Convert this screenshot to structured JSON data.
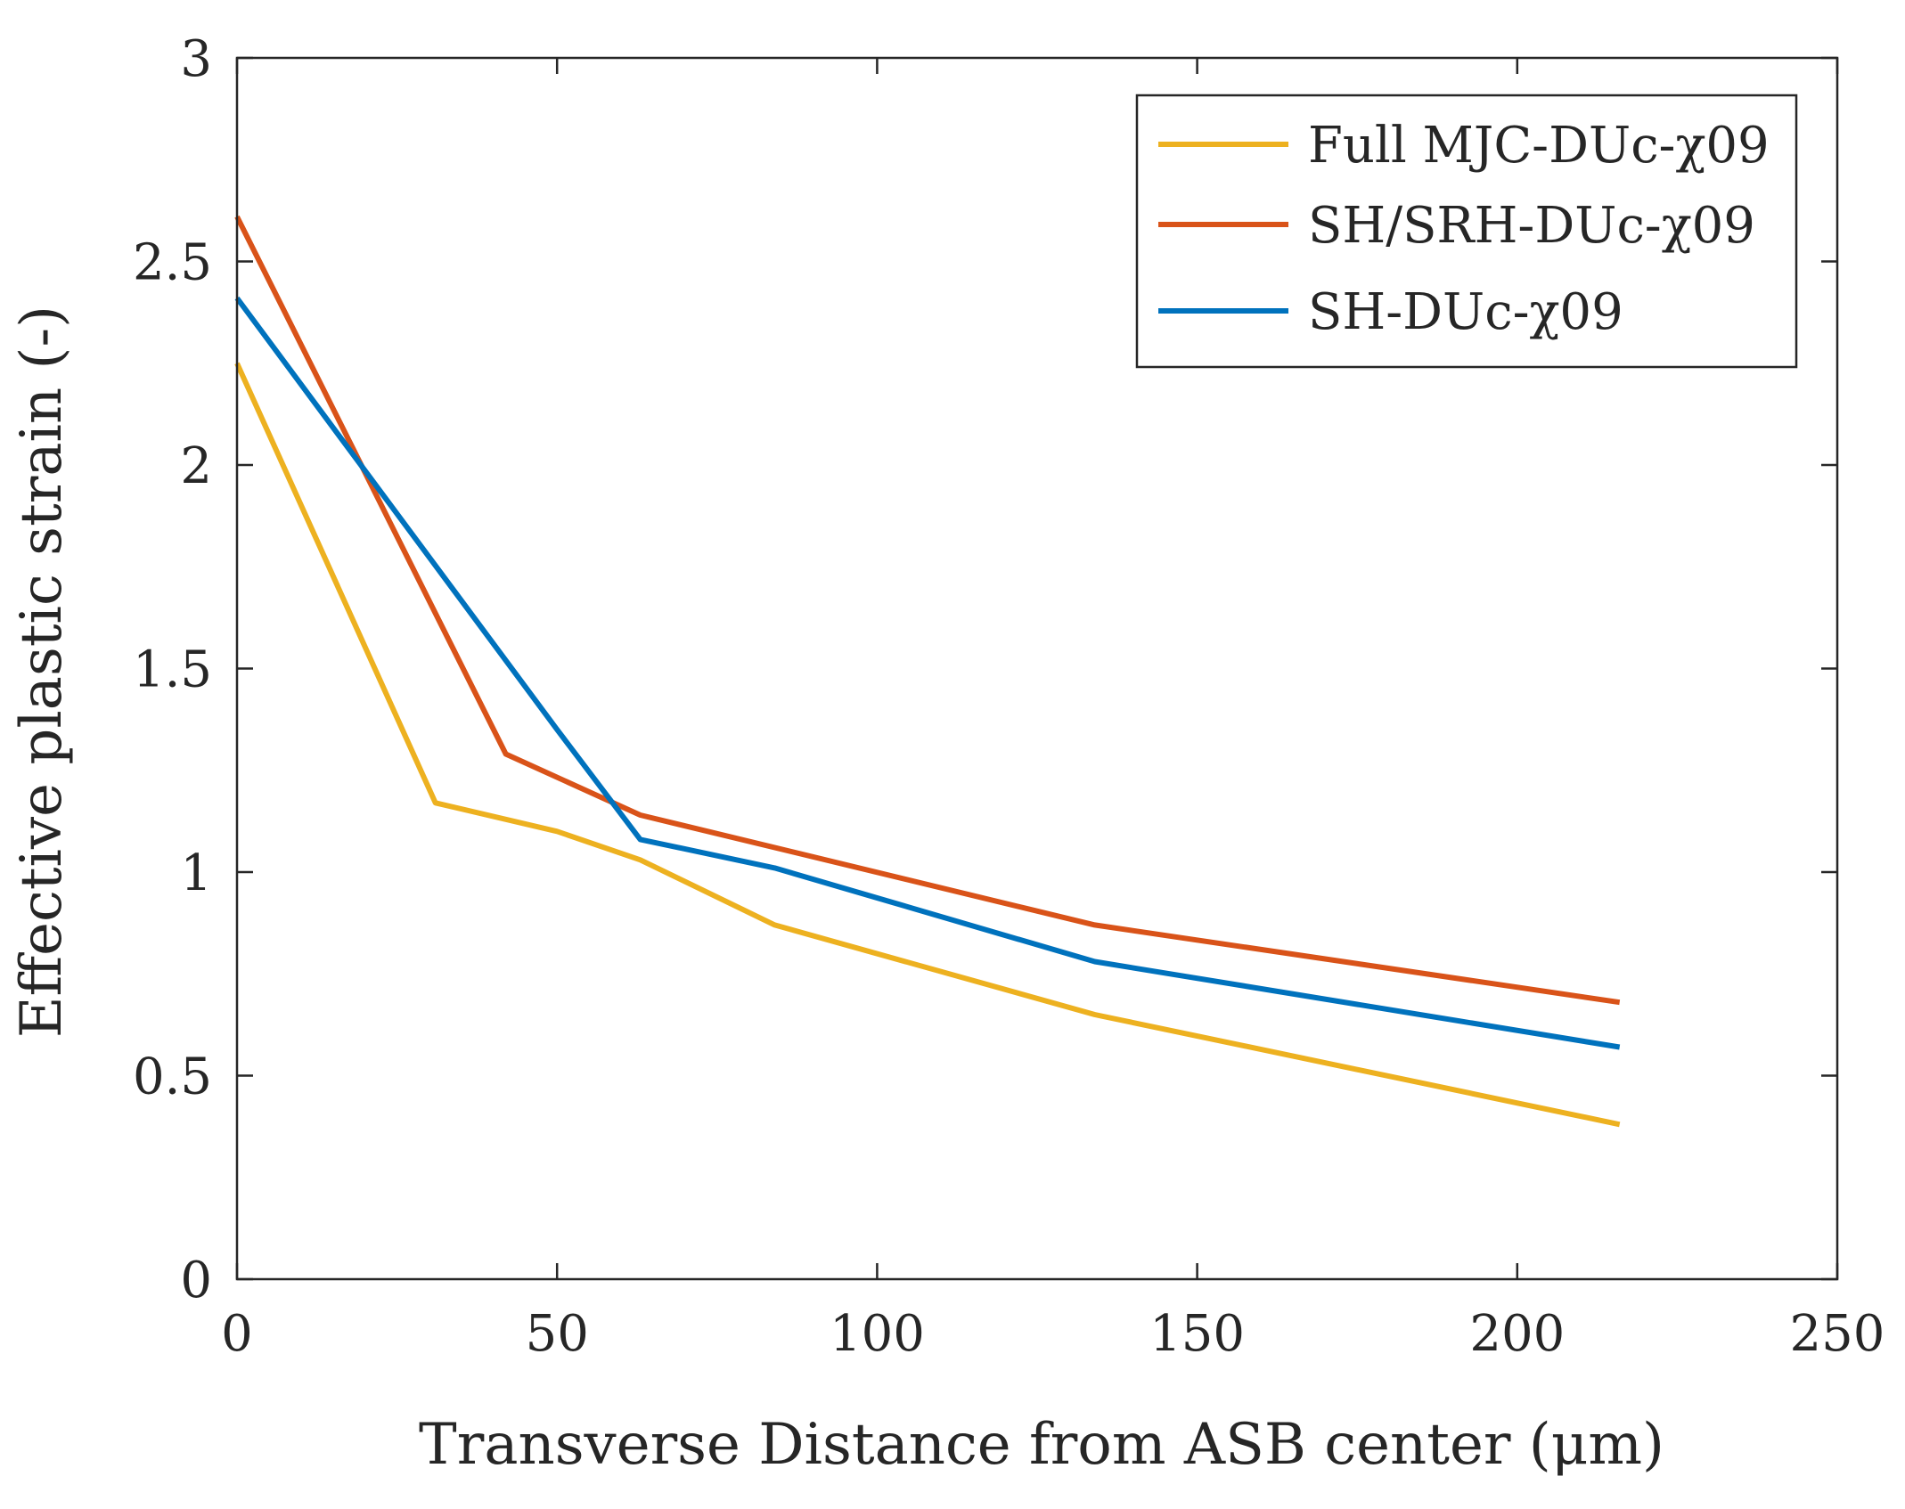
{
  "chart_data": {
    "type": "line",
    "title": "",
    "xlabel": "Transverse Distance from ASB center (μm)",
    "ylabel": "Effective plastic strain (-)",
    "xlim": [
      0,
      250
    ],
    "ylim": [
      0,
      3
    ],
    "xticks": [
      0,
      50,
      100,
      150,
      200,
      250
    ],
    "xtick_labels": [
      "0",
      "50",
      "100",
      "150",
      "200",
      "250"
    ],
    "yticks": [
      0,
      0.5,
      1,
      1.5,
      2,
      2.5,
      3
    ],
    "ytick_labels": [
      "0",
      "0.5",
      "1",
      "1.5",
      "2",
      "2.5",
      "3"
    ],
    "grid": false,
    "legend_position": "top-right",
    "series": [
      {
        "name": "Full MJC-DUc-χ09",
        "color": "#EDB120",
        "x": [
          0,
          31,
          50,
          63,
          84,
          134,
          216
        ],
        "y": [
          2.25,
          1.17,
          1.1,
          1.03,
          0.87,
          0.65,
          0.38
        ]
      },
      {
        "name": "SH/SRH-DUc-χ09",
        "color": "#D95319",
        "x": [
          0,
          42,
          63,
          134,
          216
        ],
        "y": [
          2.61,
          1.29,
          1.14,
          0.87,
          0.68
        ]
      },
      {
        "name": "SH-DUc-χ09",
        "color": "#0072BD",
        "x": [
          0,
          50,
          63,
          84,
          134,
          216
        ],
        "y": [
          2.41,
          1.35,
          1.08,
          1.01,
          0.78,
          0.57
        ]
      }
    ]
  }
}
